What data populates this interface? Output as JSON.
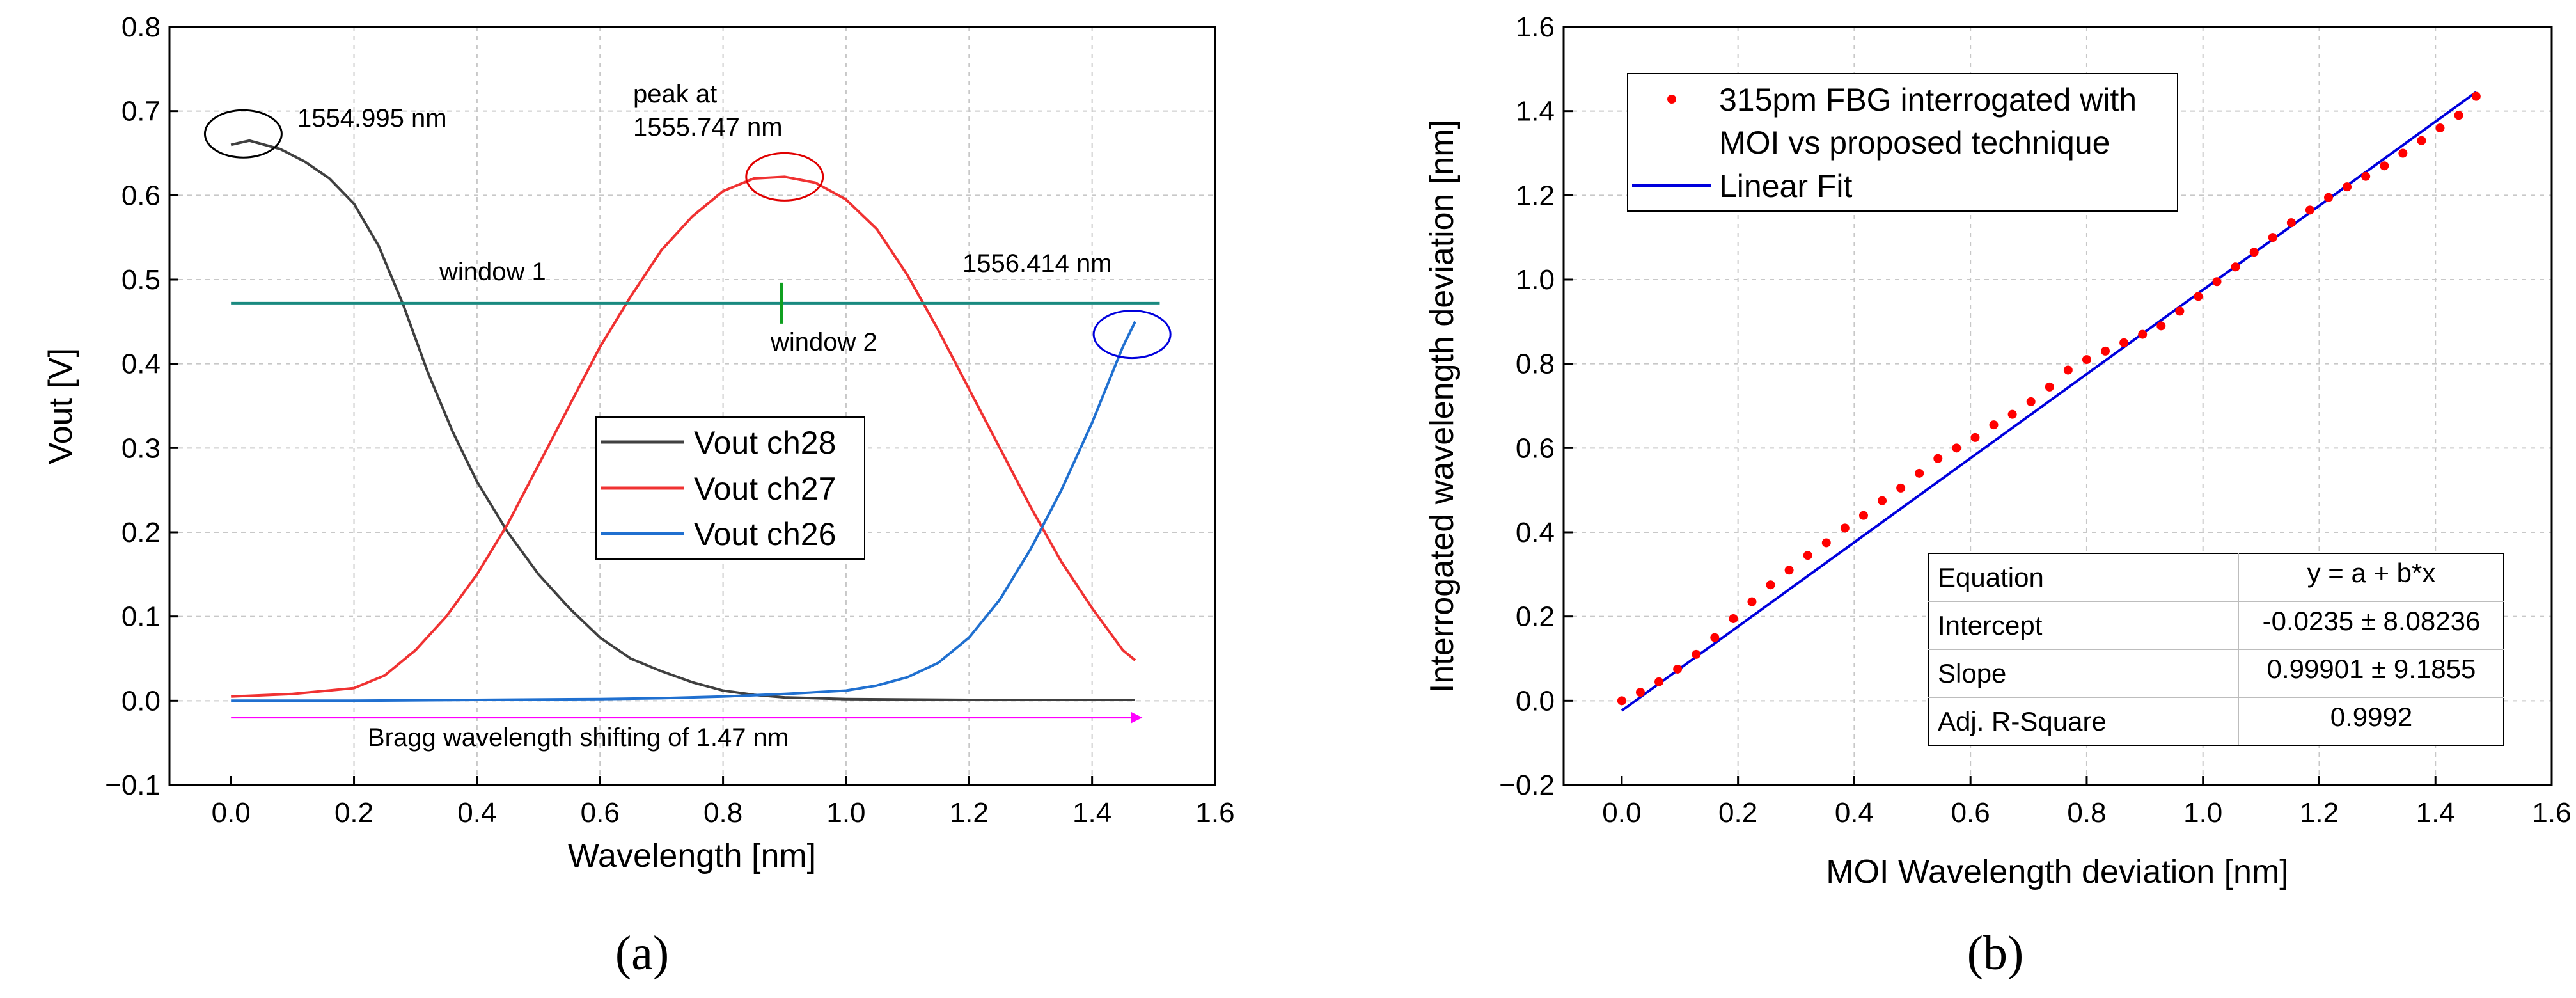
{
  "captions": [
    "(a)",
    "(b)"
  ],
  "colors": {
    "ch28": "#404040",
    "ch27": "#f03232",
    "ch26": "#2070d0",
    "window": "#1a8a80",
    "window2_marker": "#10a020",
    "arrow": "#ff00ff",
    "black_circle": "#000000",
    "red_circle": "#e00000",
    "blue_circle": "#0000dd",
    "points": "#ff0000",
    "fit": "#0000dd"
  },
  "chart_data": [
    {
      "type": "line",
      "xlabel": "Wavelength [nm]",
      "ylabel": "Vout [V]",
      "xlim": [
        -0.1,
        1.6
      ],
      "ylim": [
        -0.1,
        0.8
      ],
      "xticks": [
        0.0,
        0.2,
        0.4,
        0.6,
        0.8,
        1.0,
        1.2,
        1.4,
        1.6
      ],
      "yticks": [
        -0.1,
        0.0,
        0.1,
        0.2,
        0.3,
        0.4,
        0.5,
        0.6,
        0.7,
        0.8
      ],
      "xtick_labels": [
        "0.0",
        "0.2",
        "0.4",
        "0.6",
        "0.8",
        "1.0",
        "1.2",
        "1.4",
        "1.6"
      ],
      "ytick_labels": [
        "−0.1",
        "0.0",
        "0.1",
        "0.2",
        "0.3",
        "0.4",
        "0.5",
        "0.6",
        "0.7",
        "0.8"
      ],
      "legend": {
        "position": "center",
        "entries": [
          "Vout ch28",
          "Vout ch27",
          "Vout ch26"
        ]
      },
      "series": [
        {
          "name": "Vout ch28",
          "x": [
            0.0,
            0.03,
            0.08,
            0.12,
            0.16,
            0.2,
            0.24,
            0.28,
            0.32,
            0.36,
            0.4,
            0.45,
            0.5,
            0.55,
            0.6,
            0.65,
            0.7,
            0.75,
            0.8,
            0.85,
            0.9,
            1.0,
            1.2,
            1.47
          ],
          "values": [
            0.66,
            0.665,
            0.655,
            0.64,
            0.62,
            0.59,
            0.54,
            0.47,
            0.39,
            0.32,
            0.26,
            0.2,
            0.15,
            0.11,
            0.075,
            0.05,
            0.035,
            0.022,
            0.012,
            0.007,
            0.004,
            0.002,
            0.001,
            0.001
          ]
        },
        {
          "name": "Vout ch27",
          "x": [
            0.0,
            0.1,
            0.2,
            0.25,
            0.3,
            0.35,
            0.4,
            0.45,
            0.5,
            0.55,
            0.6,
            0.65,
            0.7,
            0.75,
            0.8,
            0.85,
            0.9,
            0.95,
            1.0,
            1.05,
            1.1,
            1.15,
            1.2,
            1.25,
            1.3,
            1.35,
            1.4,
            1.45,
            1.47
          ],
          "values": [
            0.005,
            0.008,
            0.015,
            0.03,
            0.06,
            0.1,
            0.15,
            0.21,
            0.28,
            0.35,
            0.42,
            0.48,
            0.535,
            0.575,
            0.605,
            0.62,
            0.622,
            0.615,
            0.595,
            0.56,
            0.505,
            0.44,
            0.37,
            0.3,
            0.23,
            0.165,
            0.11,
            0.06,
            0.048
          ]
        },
        {
          "name": "Vout ch26",
          "x": [
            0.0,
            0.2,
            0.4,
            0.6,
            0.7,
            0.8,
            0.9,
            1.0,
            1.05,
            1.1,
            1.15,
            1.2,
            1.25,
            1.3,
            1.35,
            1.4,
            1.45,
            1.47
          ],
          "values": [
            0.0,
            0.0,
            0.001,
            0.002,
            0.003,
            0.005,
            0.008,
            0.012,
            0.018,
            0.028,
            0.045,
            0.075,
            0.12,
            0.18,
            0.25,
            0.33,
            0.42,
            0.45
          ]
        }
      ],
      "window_line": {
        "y": 0.472,
        "x": [
          0.0,
          1.51
        ],
        "marker_x": 0.895
      },
      "bragg_arrow": {
        "y": -0.02,
        "x": [
          0.0,
          1.48
        ]
      },
      "circles": [
        {
          "name": "ch28-peak",
          "x": 0.02,
          "y": 0.673
        },
        {
          "name": "ch27-peak",
          "x": 0.9,
          "y": 0.622
        },
        {
          "name": "ch26-end",
          "x": 1.465,
          "y": 0.435
        }
      ],
      "annotations": {
        "peak28": "1554.995 nm",
        "peak27_line1": "peak at",
        "peak27_line2": "1555.747 nm",
        "end26": "1556.414 nm",
        "window1": "window 1",
        "window2": "window 2",
        "bragg": "Bragg wavelength shifting of 1.47 nm"
      }
    },
    {
      "type": "scatter",
      "xlabel": "MOI Wavelength deviation [nm]",
      "ylabel": "Interrogated wavelength deviation [nm]",
      "xlim": [
        -0.1,
        1.6
      ],
      "ylim": [
        -0.2,
        1.6
      ],
      "xticks": [
        0.0,
        0.2,
        0.4,
        0.6,
        0.8,
        1.0,
        1.2,
        1.4,
        1.6
      ],
      "yticks": [
        -0.2,
        0.0,
        0.2,
        0.4,
        0.6,
        0.8,
        1.0,
        1.2,
        1.4,
        1.6
      ],
      "xtick_labels": [
        "0.0",
        "0.2",
        "0.4",
        "0.6",
        "0.8",
        "1.0",
        "1.2",
        "1.4",
        "1.6"
      ],
      "ytick_labels": [
        "−0.2",
        "0.0",
        "0.2",
        "0.4",
        "0.6",
        "0.8",
        "1.0",
        "1.2",
        "1.4",
        "1.6"
      ],
      "legend": {
        "position": "top-left",
        "entries": [
          "315pm FBG interrogated with",
          "MOI vs proposed technique",
          "Linear Fit"
        ]
      },
      "series": [
        {
          "name": "315pm FBG interrogated with MOI vs proposed technique",
          "x": [
            0.0,
            0.032,
            0.064,
            0.096,
            0.128,
            0.16,
            0.192,
            0.224,
            0.256,
            0.288,
            0.32,
            0.352,
            0.384,
            0.416,
            0.448,
            0.48,
            0.512,
            0.544,
            0.576,
            0.608,
            0.64,
            0.672,
            0.704,
            0.736,
            0.768,
            0.8,
            0.832,
            0.864,
            0.896,
            0.928,
            0.96,
            0.992,
            1.024,
            1.056,
            1.088,
            1.12,
            1.152,
            1.184,
            1.216,
            1.248,
            1.28,
            1.312,
            1.344,
            1.376,
            1.408,
            1.44,
            1.47
          ],
          "values": [
            0.0,
            0.02,
            0.045,
            0.075,
            0.11,
            0.15,
            0.195,
            0.235,
            0.275,
            0.31,
            0.345,
            0.375,
            0.41,
            0.44,
            0.475,
            0.505,
            0.54,
            0.575,
            0.6,
            0.625,
            0.655,
            0.68,
            0.71,
            0.745,
            0.785,
            0.81,
            0.83,
            0.85,
            0.87,
            0.89,
            0.925,
            0.96,
            0.995,
            1.03,
            1.065,
            1.1,
            1.135,
            1.165,
            1.195,
            1.22,
            1.245,
            1.27,
            1.3,
            1.33,
            1.36,
            1.39,
            1.435
          ]
        },
        {
          "name": "Linear Fit",
          "x": [
            0.0,
            1.47
          ],
          "values": [
            -0.0235,
            1.445
          ]
        }
      ],
      "fit_table": {
        "rows": [
          {
            "label": "Equation",
            "value": "y = a + b*x"
          },
          {
            "label": "Intercept",
            "value": "-0.0235 ± 8.08236"
          },
          {
            "label": "Slope",
            "value": "0.99901 ± 9.1855"
          },
          {
            "label": "Adj. R-Square",
            "value": "0.9992"
          }
        ]
      }
    }
  ]
}
